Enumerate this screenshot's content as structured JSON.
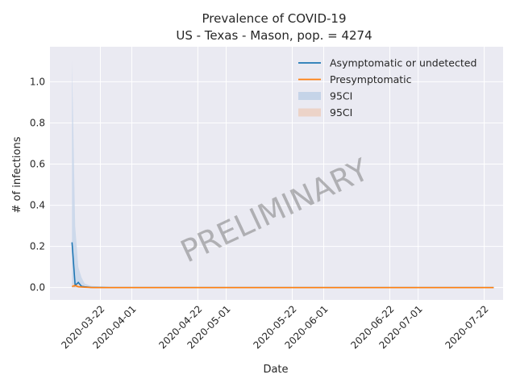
{
  "chart_data": {
    "type": "line",
    "title": "Prevalence of COVID-19",
    "subtitle": "US - Texas - Mason, pop. = 4274",
    "xlabel": "Date",
    "ylabel": "# of infections",
    "watermark": "PRELIMINARY",
    "xlim": [
      "2020-03-06",
      "2020-07-28"
    ],
    "ylim": [
      -0.06,
      1.17
    ],
    "grid": true,
    "legend_position": "top-right",
    "x_ticks": [
      {
        "label": "2020-03-22",
        "date": "2020-03-22"
      },
      {
        "label": "2020-04-01",
        "date": "2020-04-01"
      },
      {
        "label": "2020-04-22",
        "date": "2020-04-22"
      },
      {
        "label": "2020-05-01",
        "date": "2020-05-01"
      },
      {
        "label": "2020-05-22",
        "date": "2020-05-22"
      },
      {
        "label": "2020-06-01",
        "date": "2020-06-01"
      },
      {
        "label": "2020-06-22",
        "date": "2020-06-22"
      },
      {
        "label": "2020-07-01",
        "date": "2020-07-01"
      },
      {
        "label": "2020-07-22",
        "date": "2020-07-22"
      }
    ],
    "y_ticks": [
      {
        "label": "0.0",
        "value": 0.0
      },
      {
        "label": "0.2",
        "value": 0.2
      },
      {
        "label": "0.4",
        "value": 0.4
      },
      {
        "label": "0.6",
        "value": 0.6
      },
      {
        "label": "0.8",
        "value": 0.8
      },
      {
        "label": "1.0",
        "value": 1.0
      }
    ],
    "series": [
      {
        "name": "Asymptomatic or undetected",
        "color": "#1f77b4",
        "points": [
          [
            "2020-03-13",
            0.22
          ],
          [
            "2020-03-14",
            0.01
          ],
          [
            "2020-03-15",
            0.025
          ],
          [
            "2020-03-16",
            0.006
          ],
          [
            "2020-03-17",
            0.004
          ],
          [
            "2020-03-19",
            0.001
          ],
          [
            "2020-03-25",
            0.0
          ],
          [
            "2020-07-25",
            0.0
          ]
        ],
        "ci_name": "95CI",
        "ci_color": "#c5d4e8",
        "ci_upper": [
          [
            "2020-03-13",
            1.1
          ],
          [
            "2020-03-14",
            0.3
          ],
          [
            "2020-03-15",
            0.1
          ],
          [
            "2020-03-16",
            0.05
          ],
          [
            "2020-03-17",
            0.02
          ],
          [
            "2020-03-19",
            0.008
          ],
          [
            "2020-03-25",
            0.001
          ],
          [
            "2020-07-25",
            0.0
          ]
        ],
        "ci_lower": [
          [
            "2020-03-13",
            0.0
          ],
          [
            "2020-07-25",
            0.0
          ]
        ]
      },
      {
        "name": "Presymptomatic",
        "color": "#ff7f0e",
        "points": [
          [
            "2020-03-13",
            0.005
          ],
          [
            "2020-03-14",
            0.01
          ],
          [
            "2020-03-15",
            0.004
          ],
          [
            "2020-03-17",
            0.002
          ],
          [
            "2020-03-20",
            0.0
          ],
          [
            "2020-07-25",
            0.0
          ]
        ],
        "ci_name": "95CI",
        "ci_color": "#ecd3c8",
        "ci_upper": [
          [
            "2020-03-13",
            0.02
          ],
          [
            "2020-03-15",
            0.02
          ],
          [
            "2020-03-17",
            0.006
          ],
          [
            "2020-03-22",
            0.0
          ],
          [
            "2020-07-25",
            0.0
          ]
        ],
        "ci_lower": [
          [
            "2020-03-13",
            0.0
          ],
          [
            "2020-07-25",
            0.0
          ]
        ]
      }
    ]
  }
}
